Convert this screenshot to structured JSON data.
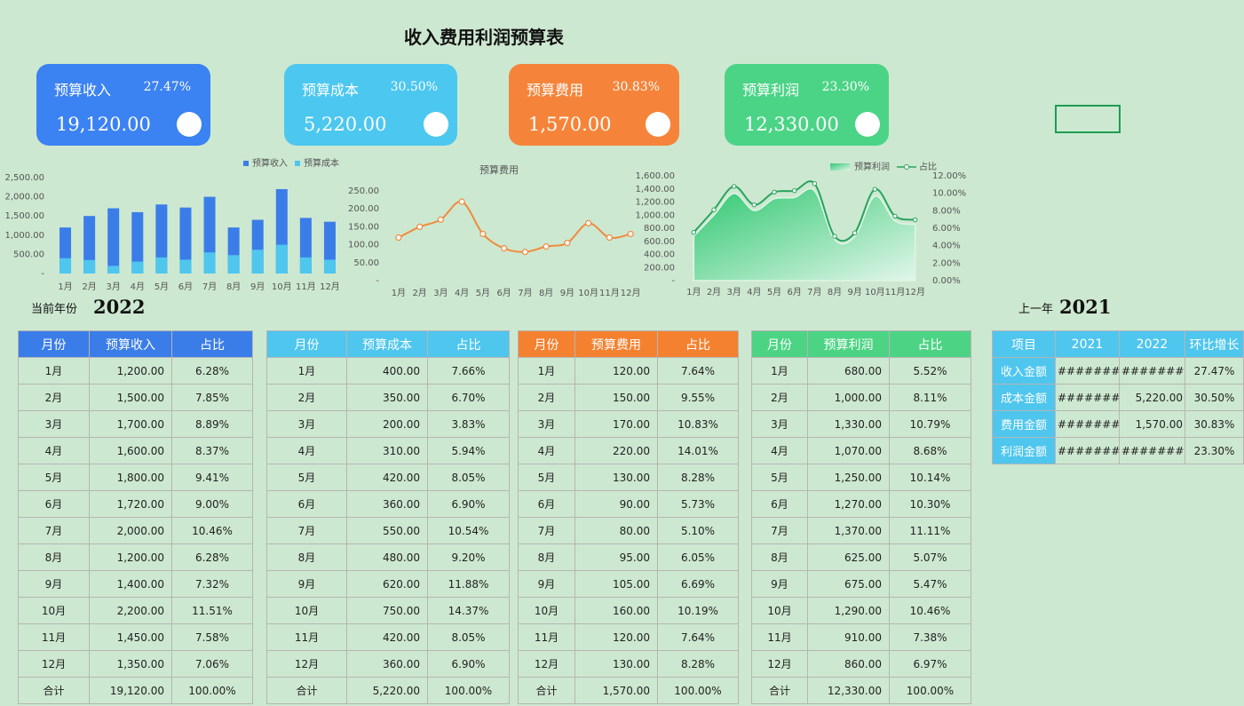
{
  "title": "收入费用利润预算表",
  "cards": [
    {
      "label": "预算收入",
      "pct": "27.47%",
      "amount": "19,120.00"
    },
    {
      "label": "预算成本",
      "pct": "30.50%",
      "amount": "5,220.00"
    },
    {
      "label": "预算费用",
      "pct": "30.83%",
      "amount": "1,570.00"
    },
    {
      "label": "预算利润",
      "pct": "23.30%",
      "amount": "12,330.00"
    }
  ],
  "years": {
    "current_label": "当前年份",
    "current_year": "2022",
    "last_label": "上一年",
    "last_year": "2021"
  },
  "chart_data": [
    {
      "type": "bar",
      "categories": [
        "1月",
        "2月",
        "3月",
        "4月",
        "5月",
        "6月",
        "7月",
        "8月",
        "9月",
        "10月",
        "11月",
        "12月"
      ],
      "series": [
        {
          "name": "预算收入",
          "color": "#3b7de8",
          "values": [
            1200,
            1500,
            1700,
            1600,
            1800,
            1720,
            2000,
            1200,
            1400,
            2200,
            1450,
            1350
          ]
        },
        {
          "name": "预算成本",
          "color": "#4fc6ee",
          "values": [
            400,
            350,
            200,
            310,
            420,
            360,
            550,
            480,
            620,
            750,
            420,
            360
          ]
        }
      ],
      "ylim": [
        0,
        2500
      ],
      "yticks": [
        {
          "value": 0,
          "label": "-"
        },
        {
          "value": 500,
          "label": "500.00"
        },
        {
          "value": 1000,
          "label": "1,000.00"
        },
        {
          "value": 1500,
          "label": "1,500.00"
        },
        {
          "value": 2000,
          "label": "2,000.00"
        },
        {
          "value": 2500,
          "label": "2,500.00"
        }
      ],
      "legend": "top"
    },
    {
      "type": "line",
      "title": "预算费用",
      "categories": [
        "1月",
        "2月",
        "3月",
        "4月",
        "5月",
        "6月",
        "7月",
        "8月",
        "9月",
        "10月",
        "11月",
        "12月"
      ],
      "series": [
        {
          "color": "#f08a3c",
          "values": [
            120,
            150,
            170,
            220,
            130,
            90,
            80,
            95,
            105,
            160,
            120,
            130
          ]
        }
      ],
      "ylim": [
        0,
        250
      ],
      "yticks": [
        {
          "value": 0,
          "label": "-"
        },
        {
          "value": 50,
          "label": "50.00"
        },
        {
          "value": 100,
          "label": "100.00"
        },
        {
          "value": 150,
          "label": "150.00"
        },
        {
          "value": 200,
          "label": "200.00"
        },
        {
          "value": 250,
          "label": "250.00"
        }
      ]
    },
    {
      "type": "area",
      "categories": [
        "1月",
        "2月",
        "3月",
        "4月",
        "5月",
        "6月",
        "7月",
        "8月",
        "9月",
        "10月",
        "11月",
        "12月"
      ],
      "series": [
        {
          "name": "预算利润",
          "color": "#3cc878",
          "values": [
            680,
            1000,
            1330,
            1070,
            1250,
            1270,
            1370,
            625,
            675,
            1290,
            910,
            860
          ]
        },
        {
          "name": "占比",
          "color": "#27a45e",
          "axis": "y2",
          "values": [
            5.52,
            8.11,
            10.79,
            8.68,
            10.14,
            10.3,
            11.11,
            5.07,
            5.47,
            10.46,
            7.38,
            6.97
          ]
        }
      ],
      "ylim": [
        0,
        1600
      ],
      "yticks": [
        {
          "value": 0,
          "label": "-"
        },
        {
          "value": 200,
          "label": "200.00"
        },
        {
          "value": 400,
          "label": "400.00"
        },
        {
          "value": 600,
          "label": "600.00"
        },
        {
          "value": 800,
          "label": "800.00"
        },
        {
          "value": 1000,
          "label": "1,000.00"
        },
        {
          "value": 1200,
          "label": "1,200.00"
        },
        {
          "value": 1400,
          "label": "1,400.00"
        },
        {
          "value": 1600,
          "label": "1,600.00"
        }
      ],
      "y2lim": [
        0,
        12
      ],
      "y2ticks": [
        {
          "value": 0,
          "label": "0.00%"
        },
        {
          "value": 2,
          "label": "2.00%"
        },
        {
          "value": 4,
          "label": "4.00%"
        },
        {
          "value": 6,
          "label": "6.00%"
        },
        {
          "value": 8,
          "label": "8.00%"
        },
        {
          "value": 10,
          "label": "10.00%"
        },
        {
          "value": 12,
          "label": "12.00%"
        }
      ],
      "legend": "top"
    }
  ],
  "tables": [
    {
      "header": [
        "月份",
        "预算收入",
        "占比"
      ],
      "rows": [
        [
          "1月",
          "1,200.00",
          "6.28%"
        ],
        [
          "2月",
          "1,500.00",
          "7.85%"
        ],
        [
          "3月",
          "1,700.00",
          "8.89%"
        ],
        [
          "4月",
          "1,600.00",
          "8.37%"
        ],
        [
          "5月",
          "1,800.00",
          "9.41%"
        ],
        [
          "6月",
          "1,720.00",
          "9.00%"
        ],
        [
          "7月",
          "2,000.00",
          "10.46%"
        ],
        [
          "8月",
          "1,200.00",
          "6.28%"
        ],
        [
          "9月",
          "1,400.00",
          "7.32%"
        ],
        [
          "10月",
          "2,200.00",
          "11.51%"
        ],
        [
          "11月",
          "1,450.00",
          "7.58%"
        ],
        [
          "12月",
          "1,350.00",
          "7.06%"
        ],
        [
          "合计",
          "19,120.00",
          "100.00%"
        ]
      ]
    },
    {
      "header": [
        "月份",
        "预算成本",
        "占比"
      ],
      "rows": [
        [
          "1月",
          "400.00",
          "7.66%"
        ],
        [
          "2月",
          "350.00",
          "6.70%"
        ],
        [
          "3月",
          "200.00",
          "3.83%"
        ],
        [
          "4月",
          "310.00",
          "5.94%"
        ],
        [
          "5月",
          "420.00",
          "8.05%"
        ],
        [
          "6月",
          "360.00",
          "6.90%"
        ],
        [
          "7月",
          "550.00",
          "10.54%"
        ],
        [
          "8月",
          "480.00",
          "9.20%"
        ],
        [
          "9月",
          "620.00",
          "11.88%"
        ],
        [
          "10月",
          "750.00",
          "14.37%"
        ],
        [
          "11月",
          "420.00",
          "8.05%"
        ],
        [
          "12月",
          "360.00",
          "6.90%"
        ],
        [
          "合计",
          "5,220.00",
          "100.00%"
        ]
      ]
    },
    {
      "header": [
        "月份",
        "预算费用",
        "占比"
      ],
      "rows": [
        [
          "1月",
          "120.00",
          "7.64%"
        ],
        [
          "2月",
          "150.00",
          "9.55%"
        ],
        [
          "3月",
          "170.00",
          "10.83%"
        ],
        [
          "4月",
          "220.00",
          "14.01%"
        ],
        [
          "5月",
          "130.00",
          "8.28%"
        ],
        [
          "6月",
          "90.00",
          "5.73%"
        ],
        [
          "7月",
          "80.00",
          "5.10%"
        ],
        [
          "8月",
          "95.00",
          "6.05%"
        ],
        [
          "9月",
          "105.00",
          "6.69%"
        ],
        [
          "10月",
          "160.00",
          "10.19%"
        ],
        [
          "11月",
          "120.00",
          "7.64%"
        ],
        [
          "12月",
          "130.00",
          "8.28%"
        ],
        [
          "合计",
          "1,570.00",
          "100.00%"
        ]
      ]
    },
    {
      "header": [
        "月份",
        "预算利润",
        "占比"
      ],
      "rows": [
        [
          "1月",
          "680.00",
          "5.52%"
        ],
        [
          "2月",
          "1,000.00",
          "8.11%"
        ],
        [
          "3月",
          "1,330.00",
          "10.79%"
        ],
        [
          "4月",
          "1,070.00",
          "8.68%"
        ],
        [
          "5月",
          "1,250.00",
          "10.14%"
        ],
        [
          "6月",
          "1,270.00",
          "10.30%"
        ],
        [
          "7月",
          "1,370.00",
          "11.11%"
        ],
        [
          "8月",
          "625.00",
          "5.07%"
        ],
        [
          "9月",
          "675.00",
          "5.47%"
        ],
        [
          "10月",
          "1,290.00",
          "10.46%"
        ],
        [
          "11月",
          "910.00",
          "7.38%"
        ],
        [
          "12月",
          "860.00",
          "6.97%"
        ],
        [
          "合计",
          "12,330.00",
          "100.00%"
        ]
      ]
    },
    {
      "header": [
        "项目",
        "2021",
        "2022",
        "环比增长"
      ],
      "rows": [
        [
          "收入金额",
          "#########",
          "##########",
          "27.47%"
        ],
        [
          "成本金额",
          "#########",
          "5,220.00",
          "30.50%"
        ],
        [
          "费用金额",
          "#########",
          "1,570.00",
          "30.83%"
        ],
        [
          "利润金额",
          "#########",
          "##########",
          "23.30%"
        ]
      ]
    }
  ]
}
